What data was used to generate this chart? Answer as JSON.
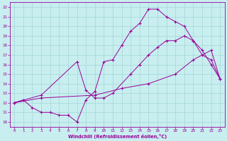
{
  "xlabel": "Windchill (Refroidissement éolien,°C)",
  "bg_color": "#c8eef0",
  "line_color": "#990099",
  "grid_color": "#aadddd",
  "xlim": [
    -0.5,
    23.5
  ],
  "ylim": [
    9.5,
    22.5
  ],
  "xticks": [
    0,
    1,
    2,
    3,
    4,
    5,
    6,
    7,
    8,
    9,
    10,
    11,
    12,
    13,
    14,
    15,
    16,
    17,
    18,
    19,
    20,
    21,
    22,
    23
  ],
  "yticks": [
    10,
    11,
    12,
    13,
    14,
    15,
    16,
    17,
    18,
    19,
    20,
    21,
    22
  ],
  "line1_x": [
    0,
    1,
    2,
    3,
    4,
    5,
    6,
    7,
    8,
    9,
    10,
    11,
    12,
    13,
    14,
    15,
    16,
    17,
    18,
    19,
    20,
    21,
    22,
    23
  ],
  "line1_y": [
    12,
    12.3,
    11.5,
    11.0,
    11.0,
    10.7,
    10.7,
    10.0,
    12.3,
    13.2,
    16.3,
    16.5,
    18.0,
    19.5,
    20.3,
    21.8,
    21.8,
    21.0,
    20.5,
    20.0,
    18.5,
    17.0,
    16.5,
    14.5
  ],
  "line2_x": [
    0,
    3,
    7,
    8,
    9,
    10,
    11,
    13,
    14,
    15,
    16,
    17,
    18,
    19,
    20,
    21,
    22,
    23
  ],
  "line2_y": [
    12,
    12.8,
    16.3,
    13.3,
    12.5,
    12.5,
    13.0,
    15.0,
    16.0,
    17.0,
    17.8,
    18.5,
    18.5,
    19.0,
    18.5,
    17.5,
    16.0,
    14.5
  ],
  "line3_x": [
    0,
    3,
    9,
    12,
    15,
    18,
    20,
    22,
    23
  ],
  "line3_y": [
    12,
    12.5,
    12.8,
    13.5,
    14.0,
    15.0,
    16.5,
    17.5,
    14.5
  ]
}
